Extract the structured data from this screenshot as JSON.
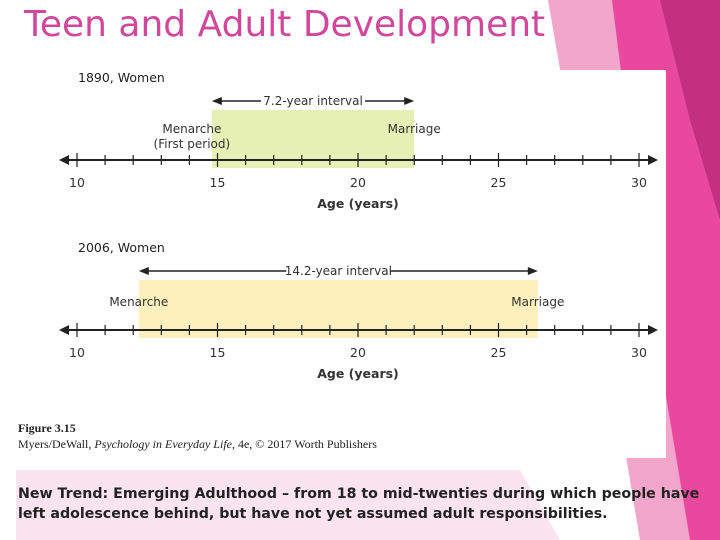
{
  "slide": {
    "title": "Teen and Adult Development",
    "accent_color": "#d0479c",
    "bottom_text": "New Trend:  Emerging Adulthood – from 18 to mid-twenties during which people have left adolescence behind, but have not yet assumed adult responsibilities."
  },
  "figure": {
    "caption_label": "Figure 3.15",
    "caption_author": "Myers/DeWall, ",
    "caption_book": "Psychology in Everyday Life",
    "caption_rest": ", 4e, © 2017 Worth Publishers"
  },
  "chart_data": [
    {
      "type": "timeline",
      "panel_label": "1890, Women",
      "interval_label": "7.2-year interval",
      "start": 14.8,
      "end": 22,
      "start_label_line1": "Menarche",
      "start_label_line2": "(First period)",
      "end_label": "Marriage",
      "band_color": "#e6f0b4",
      "xlim": [
        10,
        30
      ],
      "ticks": [
        "10",
        "15",
        "20",
        "25",
        "30"
      ],
      "xlabel": "Age (years)"
    },
    {
      "type": "timeline",
      "panel_label": "2006, Women",
      "interval_label": "14.2-year interval",
      "start": 12.2,
      "end": 26.4,
      "start_label_line1": "Menarche",
      "start_label_line2": "",
      "end_label": "Marriage",
      "band_color": "#fdf0bc",
      "xlim": [
        10,
        30
      ],
      "ticks": [
        "10",
        "15",
        "20",
        "25",
        "30"
      ],
      "xlabel": "Age (years)"
    }
  ]
}
